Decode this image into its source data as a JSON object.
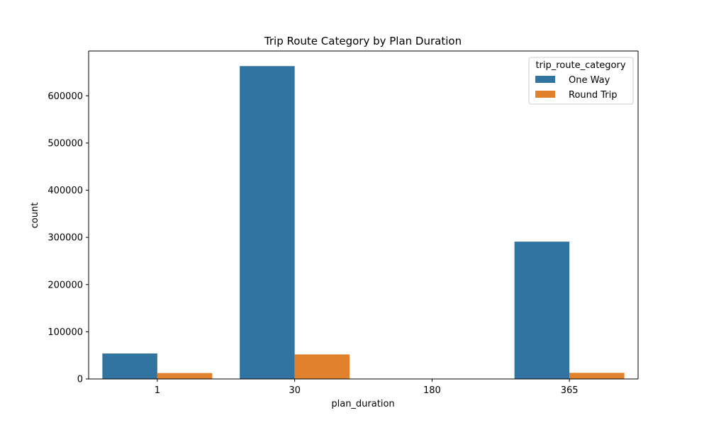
{
  "chart_data": {
    "type": "bar",
    "title": "Trip Route Category by Plan Duration",
    "xlabel": "plan_duration",
    "ylabel": "count",
    "categories": [
      "1",
      "30",
      "180",
      "365"
    ],
    "series": [
      {
        "name": "One Way",
        "color": "#3274a1",
        "values": [
          54000,
          663000,
          0,
          291000
        ]
      },
      {
        "name": "Round Trip",
        "color": "#e1812c",
        "values": [
          12500,
          52000,
          0,
          13000
        ]
      }
    ],
    "ylim": [
      0,
      695000
    ],
    "yticks": [
      0,
      100000,
      200000,
      300000,
      400000,
      500000,
      600000
    ],
    "legend": {
      "title": "trip_route_category",
      "position": "top-right"
    },
    "grid": false
  }
}
